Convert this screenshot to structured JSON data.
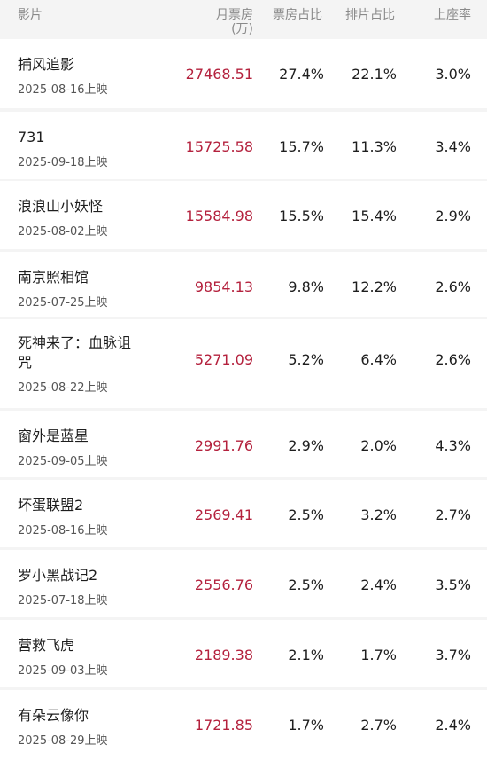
{
  "header": {
    "film": "影片",
    "box_line1": "月票房",
    "box_line2": "(万)",
    "share": "票房占比",
    "schedule": "排片占比",
    "seat": "上座率"
  },
  "movies": [
    {
      "title": "捕风追影",
      "date": "2025-08-16上映",
      "box": "27468.51",
      "share": "27.4%",
      "schedule": "22.1%",
      "seat": "3.0%"
    },
    {
      "title": "731",
      "date": "2025-09-18上映",
      "box": "15725.58",
      "share": "15.7%",
      "schedule": "11.3%",
      "seat": "3.4%"
    },
    {
      "title": "浪浪山小妖怪",
      "date": "2025-08-02上映",
      "box": "15584.98",
      "share": "15.5%",
      "schedule": "15.4%",
      "seat": "2.9%"
    },
    {
      "title": "南京照相馆",
      "date": "2025-07-25上映",
      "box": "9854.13",
      "share": "9.8%",
      "schedule": "12.2%",
      "seat": "2.6%"
    },
    {
      "title": "死神来了：血脉诅咒",
      "date": "2025-08-22上映",
      "box": "5271.09",
      "share": "5.2%",
      "schedule": "6.4%",
      "seat": "2.6%"
    },
    {
      "title": "窗外是蓝星",
      "date": "2025-09-05上映",
      "box": "2991.76",
      "share": "2.9%",
      "schedule": "2.0%",
      "seat": "4.3%"
    },
    {
      "title": "坏蛋联盟2",
      "date": "2025-08-16上映",
      "box": "2569.41",
      "share": "2.5%",
      "schedule": "3.2%",
      "seat": "2.7%"
    },
    {
      "title": "罗小黑战记2",
      "date": "2025-07-18上映",
      "box": "2556.76",
      "share": "2.5%",
      "schedule": "2.4%",
      "seat": "3.5%"
    },
    {
      "title": "营救飞虎",
      "date": "2025-09-03上映",
      "box": "2189.38",
      "share": "2.1%",
      "schedule": "1.7%",
      "seat": "3.7%"
    },
    {
      "title": "有朵云像你",
      "date": "2025-08-29上映",
      "box": "1721.85",
      "share": "1.7%",
      "schedule": "2.7%",
      "seat": "2.4%"
    }
  ],
  "colors": {
    "box_office": "#b4213d",
    "background": "#f4f4f4",
    "row_background": "#ffffff"
  }
}
